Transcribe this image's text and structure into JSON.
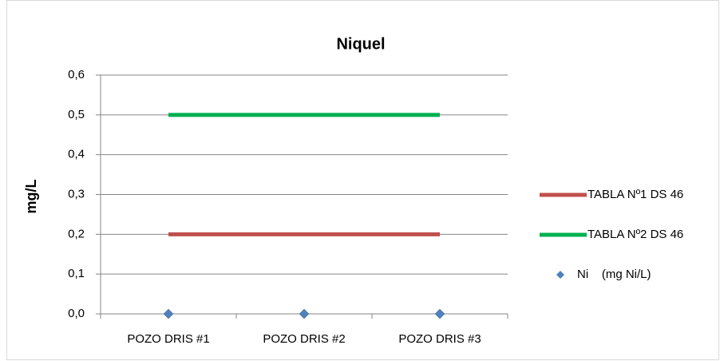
{
  "chart_data": {
    "type": "line",
    "title": "Niquel",
    "y_label": "mg/L",
    "categories": [
      "POZO DRIS #1",
      "POZO DRIS #2",
      "POZO DRIS #3"
    ],
    "series": [
      {
        "name": "TABLA Nº1 DS 46",
        "color": "#c0504d",
        "style": "line",
        "values": [
          0.2,
          0.2,
          0.2
        ]
      },
      {
        "name": "TABLA Nº2 DS 46",
        "color": "#00b050",
        "style": "line",
        "values": [
          0.5,
          0.5,
          0.5
        ]
      },
      {
        "name": "Ni    (mg Ni/L)",
        "color": "#4f81bd",
        "style": "markers",
        "values": [
          0,
          0,
          0
        ]
      }
    ],
    "ylim": [
      0,
      0.6
    ],
    "yticks": [
      {
        "value": 0,
        "label": "0,0"
      },
      {
        "value": 0.1,
        "label": "0,1"
      },
      {
        "value": 0.2,
        "label": "0,2"
      },
      {
        "value": 0.3,
        "label": "0,3"
      },
      {
        "value": 0.4,
        "label": "0,4"
      },
      {
        "value": 0.5,
        "label": "0,5"
      },
      {
        "value": 0.6,
        "label": "0,6"
      }
    ],
    "grid": true,
    "legend": "right"
  }
}
